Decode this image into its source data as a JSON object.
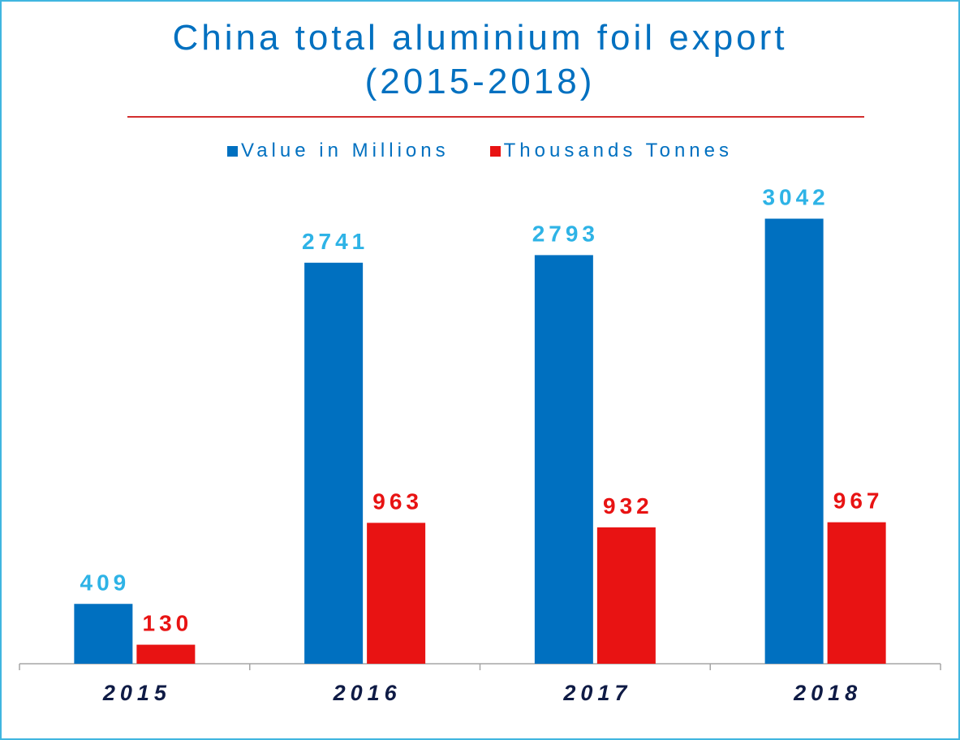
{
  "chart_data": {
    "type": "bar",
    "title": "China total aluminium foil export",
    "subtitle": "(2015-2018)",
    "categories": [
      "2015",
      "2016",
      "2017",
      "2018"
    ],
    "series": [
      {
        "name": "Value in Millions",
        "values": [
          409,
          2741,
          2793,
          3042
        ],
        "color": "#0070C0",
        "label_color": "#2EB3E6"
      },
      {
        "name": "Thousands Tonnes",
        "values": [
          130,
          963,
          932,
          967
        ],
        "color": "#E81313",
        "label_color": "#E81313"
      }
    ],
    "xlabel": "",
    "ylabel": "",
    "ylim": [
      0,
      3250
    ],
    "grid": false,
    "legend_position": "top",
    "data_labels": true
  },
  "colors": {
    "border": "#3FB6E0",
    "title": "#0070C0",
    "title_rule": "#D32F2F",
    "axis": "#A6A6A6",
    "category_label": "#0F1B45"
  }
}
